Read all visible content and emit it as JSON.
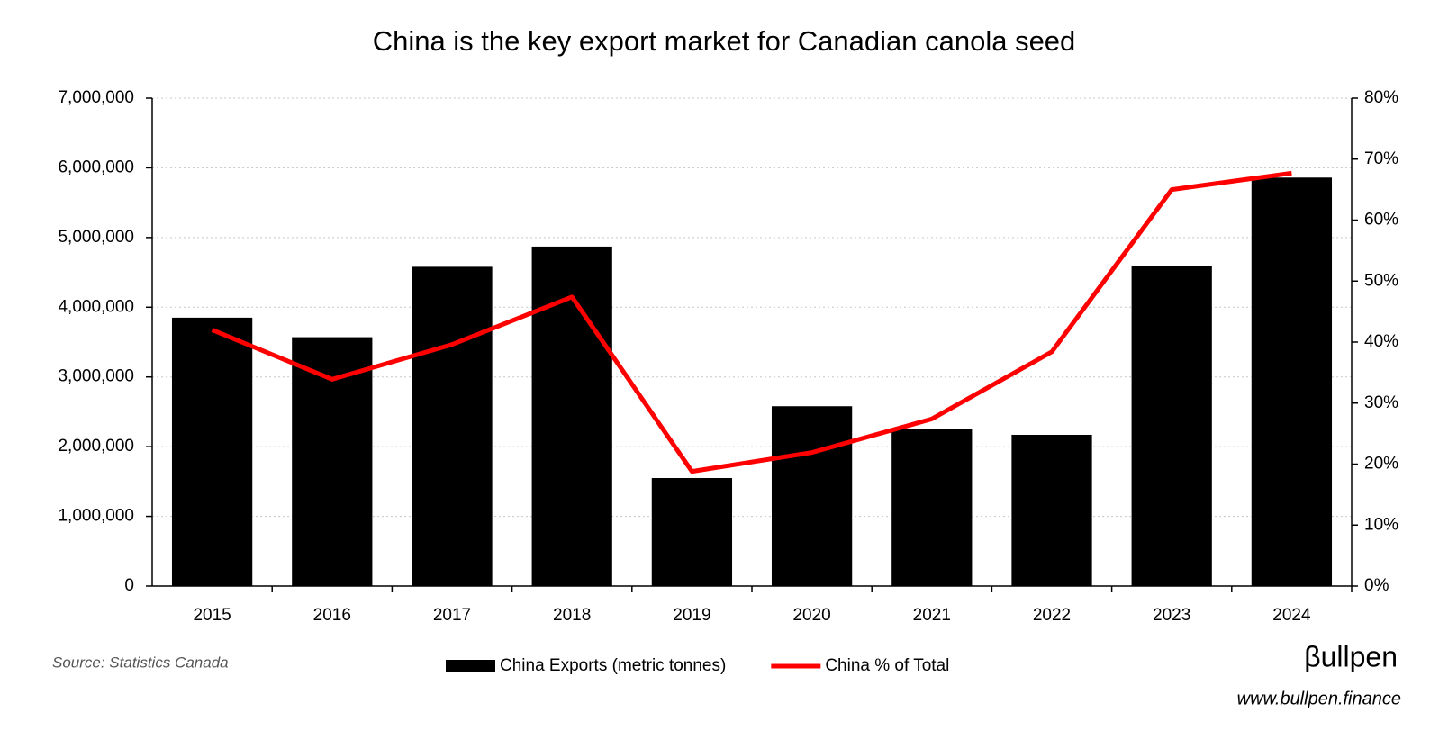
{
  "chart_data": {
    "type": "bar-line",
    "title": "China is the key export market for Canadian canola seed",
    "categories": [
      "2015",
      "2016",
      "2017",
      "2018",
      "2019",
      "2020",
      "2021",
      "2022",
      "2023",
      "2024"
    ],
    "series": [
      {
        "name": "China Exports (metric tonnes)",
        "type": "bar",
        "color": "#000000",
        "axis": "y",
        "values": [
          3850000,
          3570000,
          4580000,
          4870000,
          1550000,
          2580000,
          2250000,
          2170000,
          4590000,
          5860000
        ]
      },
      {
        "name": "China % of Total",
        "type": "line",
        "color": "#ff0000",
        "axis": "y2",
        "values": [
          42.0,
          33.9,
          39.6,
          47.4,
          18.8,
          21.9,
          27.4,
          38.4,
          65.0,
          67.7
        ]
      }
    ],
    "ylim": [
      0,
      7000000
    ],
    "yticks": [
      0,
      {
        "value": 1000000,
        "label": "1,000,000"
      },
      {
        "value": 2000000,
        "label": "2,000,000"
      },
      {
        "value": 3000000,
        "label": "3,000,000"
      },
      {
        "value": 4000000,
        "label": "4,000,000"
      },
      {
        "value": 5000000,
        "label": "5,000,000"
      },
      {
        "value": 6000000,
        "label": "6,000,000"
      },
      {
        "value": 7000000,
        "label": "7,000,000"
      }
    ],
    "y2lim": [
      0,
      80
    ],
    "y2ticks": [
      {
        "value": 0,
        "label": "0%"
      },
      {
        "value": 10,
        "label": "10%"
      },
      {
        "value": 20,
        "label": "20%"
      },
      {
        "value": 30,
        "label": "30%"
      },
      {
        "value": 40,
        "label": "40%"
      },
      {
        "value": 50,
        "label": "50%"
      },
      {
        "value": 60,
        "label": "60%"
      },
      {
        "value": 70,
        "label": "70%"
      },
      {
        "value": 80,
        "label": "80%"
      }
    ],
    "grid": true,
    "legend": "bottom",
    "source": "Source: Statistics Canada",
    "logo": "βullpen",
    "url": "www.bullpen.finance"
  }
}
